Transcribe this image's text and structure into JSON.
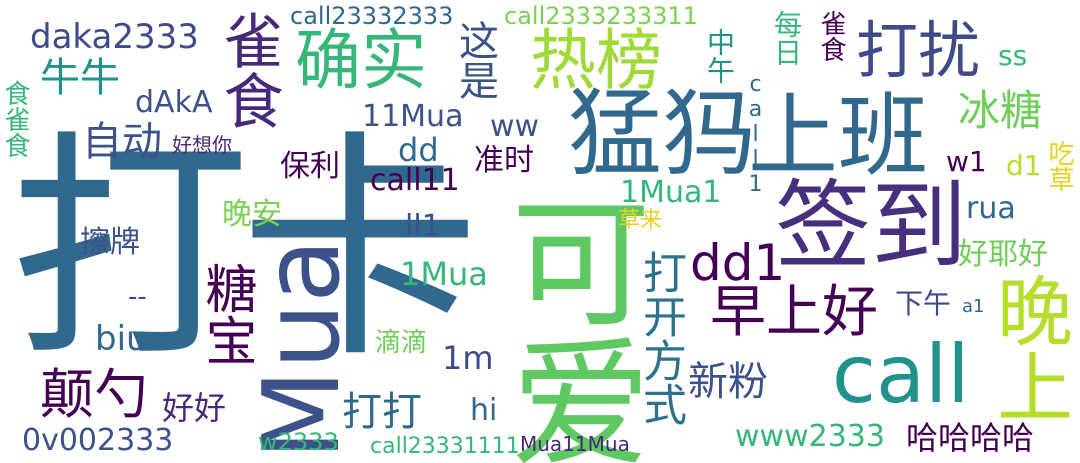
{
  "palette": {
    "purple": "#440154",
    "indigo": "#3b528b",
    "teal": "#21918c",
    "blue": "#31688e",
    "green": "#35b779",
    "lime": "#6ece58",
    "yellow": "#b5de2b",
    "gold": "#e6d21e"
  },
  "words": [
    "打卡",
    "可爱",
    "Mua",
    "猛犸",
    "上班",
    "签到",
    "call",
    "晚上",
    "确实",
    "热榜",
    "打扰",
    "雀食",
    "早上好",
    "糖宝",
    "颠勺",
    "牛牛",
    "自动",
    "这是",
    "冰糖",
    "dd1",
    "打开方式",
    "新粉",
    "打打",
    "好好",
    "daka2333",
    "call23332333",
    "call2333233311",
    "中午",
    "每日",
    "食雀食",
    "雀食",
    "ss",
    "dAkA",
    "11Mua",
    "ww",
    "call1",
    "dd",
    "保利",
    "准时",
    "call11",
    "w1",
    "d1",
    "吃草",
    "好想你",
    "1Mua1",
    "rua",
    "晚安",
    "草来",
    "擦牌",
    "ll1",
    "好耶好",
    "1Mua",
    "下午",
    "a1",
    "biu",
    "滴滴",
    "1m",
    "hi",
    "www2333",
    "哈哈哈哈",
    "0v002333",
    "w2333",
    "call23331111",
    "Mua11Mua",
    "--"
  ]
}
